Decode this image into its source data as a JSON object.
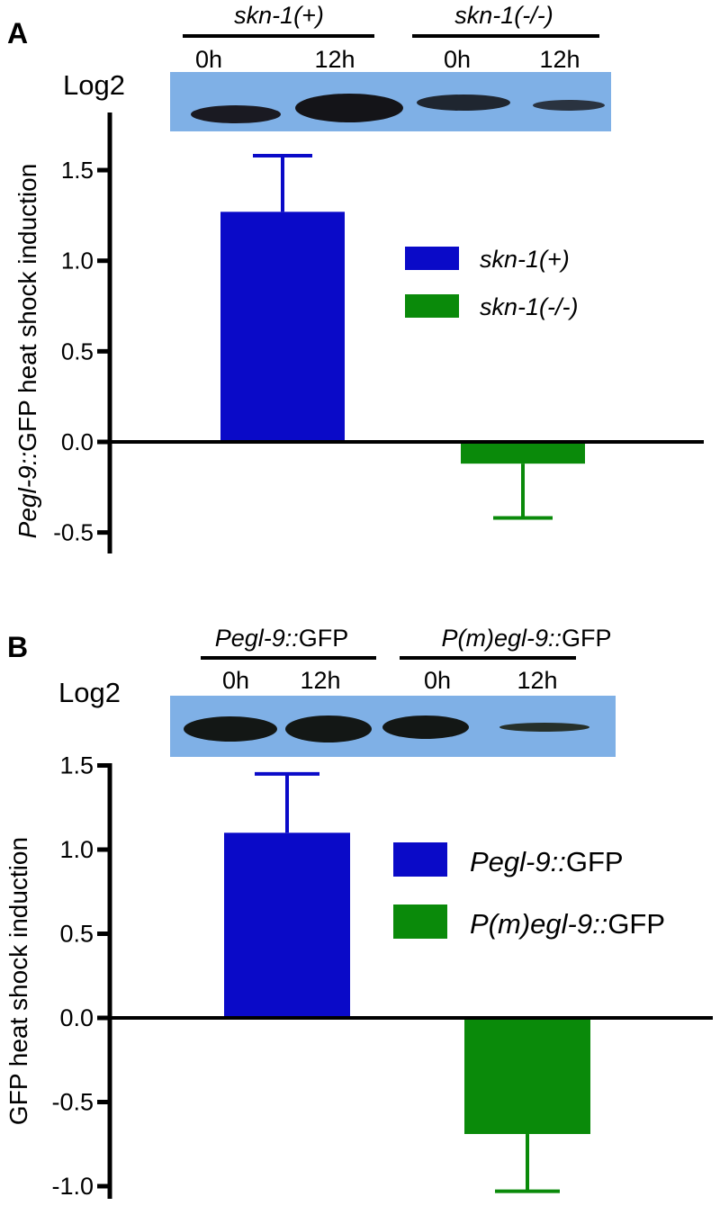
{
  "panels": [
    {
      "letter": "A",
      "log_label": "Log2",
      "blot": {
        "groups": [
          {
            "label": "skn-1(+)",
            "lanes": [
              "0h",
              "12h"
            ]
          },
          {
            "label": "skn-1(-/-)",
            "lanes": [
              "0h",
              "12h"
            ]
          }
        ],
        "band_intensity": [
          0.75,
          1.0,
          0.65,
          0.45
        ]
      },
      "ylabel": {
        "italic_part": "Pegl-9::",
        "rest": "GFP heat shock induction"
      },
      "legend": [
        {
          "italic_part": "skn-1(+)",
          "rest": "",
          "color": "#0a0ac8"
        },
        {
          "italic_part": "skn-1(-/-)",
          "rest": "",
          "color": "#0a8a0a"
        }
      ]
    },
    {
      "letter": "B",
      "log_label": "Log2",
      "blot": {
        "groups": [
          {
            "label_italic": "Pegl-9::",
            "label_rest": "GFP",
            "lanes": [
              "0h",
              "12h"
            ]
          },
          {
            "label_italic": "P(m)egl-9::",
            "label_rest": "GFP",
            "lanes": [
              "0h",
              "12h"
            ]
          }
        ],
        "band_intensity": [
          1.0,
          1.0,
          1.0,
          0.35
        ]
      },
      "ylabel": {
        "italic_part": "",
        "rest": "GFP heat shock induction"
      },
      "legend": [
        {
          "italic_part": "Pegl-9::",
          "rest": "GFP",
          "color": "#0a0ac8"
        },
        {
          "italic_part": "P(m)egl-9::",
          "rest": "GFP",
          "color": "#0a8a0a"
        }
      ]
    }
  ],
  "chart_data": [
    {
      "type": "bar",
      "categories": [
        "skn-1(+)",
        "skn-1(-/-)"
      ],
      "values": [
        1.27,
        -0.12
      ],
      "errors": [
        0.31,
        0.3
      ],
      "colors": [
        "#0a0ac8",
        "#0a8a0a"
      ],
      "ylim": [
        -0.6,
        1.75
      ],
      "yticks": [
        "1.5",
        "1.0",
        "0.5",
        "0.0",
        "-0.5"
      ],
      "ytick_values": [
        1.5,
        1.0,
        0.5,
        0.0,
        -0.5
      ]
    },
    {
      "type": "bar",
      "categories": [
        "Pegl-9::GFP",
        "P(m)egl-9::GFP"
      ],
      "values": [
        1.1,
        -0.69
      ],
      "errors": [
        0.35,
        0.34
      ],
      "colors": [
        "#0a0ac8",
        "#0a8a0a"
      ],
      "ylim": [
        -1.1,
        1.5
      ],
      "yticks": [
        "1.5",
        "1.0",
        "0.5",
        "0.0",
        "-0.5",
        "-1.0"
      ],
      "ytick_values": [
        1.5,
        1.0,
        0.5,
        0.0,
        -0.5,
        -1.0
      ]
    }
  ]
}
